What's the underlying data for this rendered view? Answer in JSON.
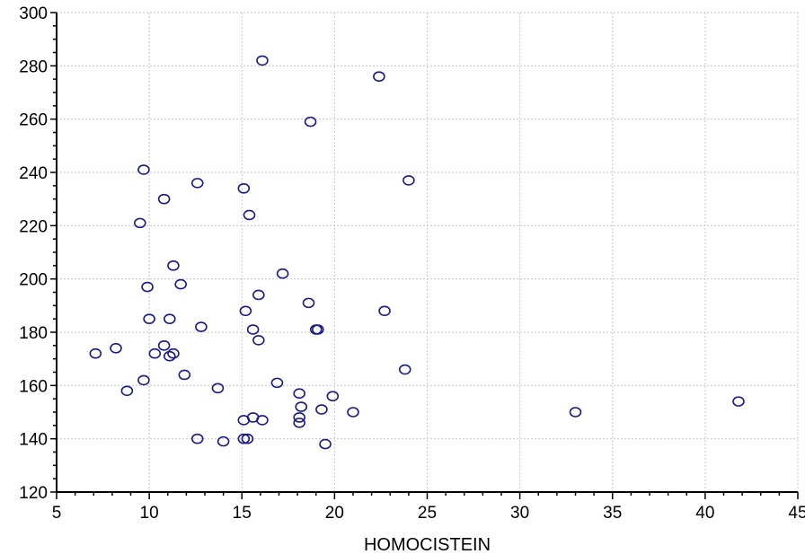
{
  "chart_data": {
    "type": "scatter",
    "title": "",
    "xlabel": "HOMOCISTEIN",
    "ylabel": "",
    "xlim": [
      5,
      45
    ],
    "ylim": [
      120,
      300
    ],
    "xticks": [
      5,
      10,
      15,
      20,
      25,
      30,
      35,
      40,
      45
    ],
    "yticks": [
      120,
      140,
      160,
      180,
      200,
      220,
      240,
      260,
      280,
      300
    ],
    "grid": true,
    "marker_color": "#1a1a8c",
    "series": [
      {
        "x": [
          16.1,
          22.4,
          18.7,
          9.7,
          24.0,
          12.6,
          10.8,
          15.1,
          15.4,
          9.5,
          11.3,
          17.2,
          9.9,
          11.7,
          15.9,
          18.6,
          22.7,
          15.2,
          10.0,
          11.1,
          12.8,
          15.6,
          19.0,
          19.1,
          15.9,
          7.1,
          8.2,
          10.8,
          10.3,
          11.3,
          11.1,
          11.9,
          23.8,
          9.7,
          16.9,
          13.7,
          8.8,
          18.1,
          18.2,
          19.9,
          19.3,
          21.0,
          33.0,
          41.8,
          15.6,
          15.1,
          16.1,
          18.1,
          18.1,
          12.6,
          14.0,
          15.1,
          15.3,
          19.5
        ],
        "y": [
          282,
          276,
          259,
          241,
          237,
          236,
          230,
          234,
          224,
          221,
          205,
          202,
          197,
          198,
          194,
          191,
          188,
          188,
          185,
          185,
          182,
          181,
          181,
          181,
          177,
          172,
          174,
          175,
          172,
          172,
          171,
          164,
          166,
          162,
          161,
          159,
          158,
          157,
          152,
          156,
          151,
          150,
          150,
          154,
          148,
          147,
          147,
          148,
          146,
          140,
          139,
          140,
          140,
          138
        ]
      }
    ]
  }
}
